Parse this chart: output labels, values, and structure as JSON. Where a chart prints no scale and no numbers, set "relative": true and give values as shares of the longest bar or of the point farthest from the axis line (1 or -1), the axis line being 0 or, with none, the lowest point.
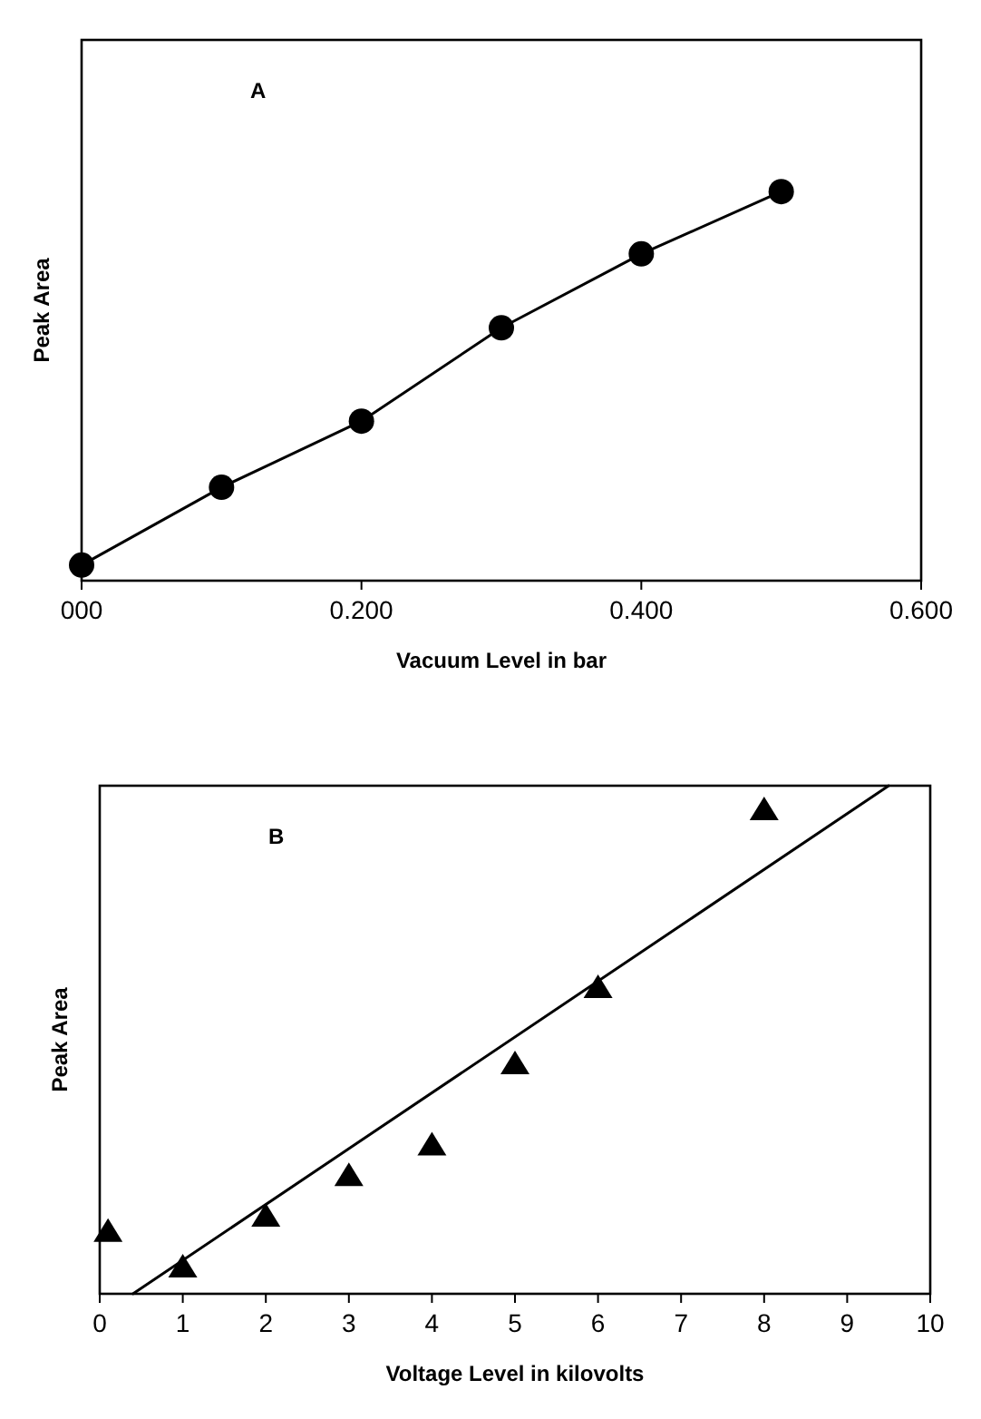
{
  "chart_data": [
    {
      "type": "line",
      "relative": true,
      "xlabel": "Vacuum Level in bar",
      "ylabel": "Peak Area",
      "annotations": [
        "A"
      ],
      "marker": "circle",
      "line_style": "solid",
      "xlim": [
        0,
        0.6
      ],
      "xticks": [
        {
          "value": 0,
          "label": "000"
        },
        {
          "value": 0.2,
          "label": "0.200"
        },
        {
          "value": 0.4,
          "label": "0.400"
        },
        {
          "value": 0.6,
          "label": "0.600"
        }
      ],
      "series": [
        {
          "color": "#000000",
          "x": [
            0,
            0.1,
            0.2,
            0.3,
            0.4,
            0.5
          ],
          "values": [
            0.04,
            0.24,
            0.41,
            0.65,
            0.84,
            1
          ]
        }
      ]
    },
    {
      "type": "scatter",
      "relative": true,
      "xlabel": "Voltage Level in kilovolts",
      "ylabel": "Peak Area",
      "annotations": [
        "B"
      ],
      "marker": "triangle",
      "xlim": [
        0,
        10
      ],
      "xticks": [
        0,
        1,
        2,
        3,
        4,
        5,
        6,
        7,
        8,
        9,
        10
      ],
      "series": [
        {
          "color": "#000000",
          "x": [
            0.1,
            1,
            2,
            3,
            4,
            5,
            6,
            8
          ],
          "values": [
            0.12,
            0.05,
            0.15,
            0.23,
            0.29,
            0.45,
            0.6,
            0.95
          ]
        },
        {
          "type": "line",
          "marker": "none",
          "line_style": "solid",
          "color": "#000000",
          "x": [
            0.4,
            9.5
          ],
          "values": [
            0,
            1
          ]
        }
      ]
    }
  ]
}
